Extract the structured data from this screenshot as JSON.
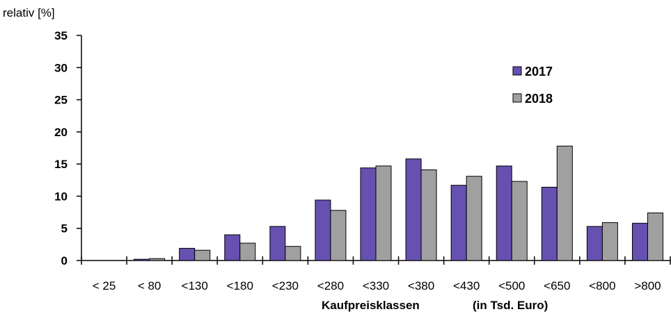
{
  "chart_data": {
    "type": "bar",
    "ylabel": "relativ [%]",
    "xlabel": "Kaufpreisklassen",
    "xlabel_unit": "(in Tsd. Euro)",
    "ylim": [
      0,
      35
    ],
    "yticks": [
      0,
      5,
      10,
      15,
      20,
      25,
      30,
      35
    ],
    "categories": [
      "< 25",
      "< 80",
      "<130",
      "<180",
      "<230",
      "<280",
      "<330",
      "<380",
      "<430",
      "<500",
      "<650",
      "<800",
      ">800"
    ],
    "series": [
      {
        "name": "2017",
        "color": "#6650b0",
        "values": [
          0,
          0.2,
          1.9,
          4.0,
          5.3,
          9.4,
          14.4,
          15.8,
          11.7,
          14.7,
          11.4,
          5.3,
          5.8
        ]
      },
      {
        "name": "2018",
        "color": "#a0a0a0",
        "values": [
          0,
          0.3,
          1.6,
          2.7,
          2.2,
          7.8,
          14.7,
          14.1,
          13.1,
          12.3,
          17.8,
          5.9,
          7.4
        ]
      }
    ],
    "legend_position": "top-right",
    "grid": false
  }
}
